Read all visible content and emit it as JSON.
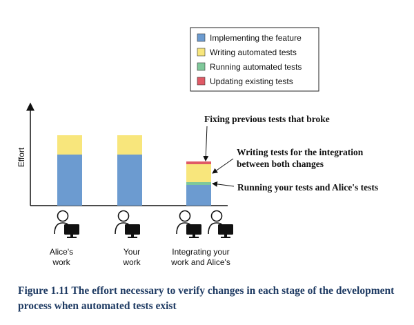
{
  "chart_data": {
    "type": "bar",
    "stacked": true,
    "categories": [
      "Alice's\nwork",
      "Your\nwork",
      "Integrating your\nwork and Alice's"
    ],
    "series": [
      {
        "name": "Implementing the feature",
        "color": "#6c9bd0",
        "values": [
          74,
          74,
          30
        ]
      },
      {
        "name": "Running automated tests",
        "color": "#7fc89a",
        "values": [
          0,
          0,
          4
        ]
      },
      {
        "name": "Writing automated tests",
        "color": "#f8e67c",
        "values": [
          28,
          28,
          26
        ]
      },
      {
        "name": "Updating existing tests",
        "color": "#e05a66",
        "values": [
          0,
          0,
          4
        ]
      }
    ],
    "legend_order": [
      0,
      2,
      1,
      3
    ],
    "legend_position": "top-right",
    "ylabel": "Effort",
    "ylim": [
      0,
      114
    ],
    "grid": false,
    "annotations": [
      {
        "text": "Fixing previous tests that broke",
        "target_category": 2,
        "target_series": 3
      },
      {
        "text": "Writing tests for the integration\nbetween both changes",
        "target_category": 2,
        "target_series": 2
      },
      {
        "text": "Running your tests and Alice's tests",
        "target_category": 2,
        "target_series": 1
      }
    ],
    "person_icons": [
      1,
      1,
      2
    ]
  },
  "caption": "Figure 1.11 The effort necessary to verify changes in each stage of the development process when automated tests exist"
}
